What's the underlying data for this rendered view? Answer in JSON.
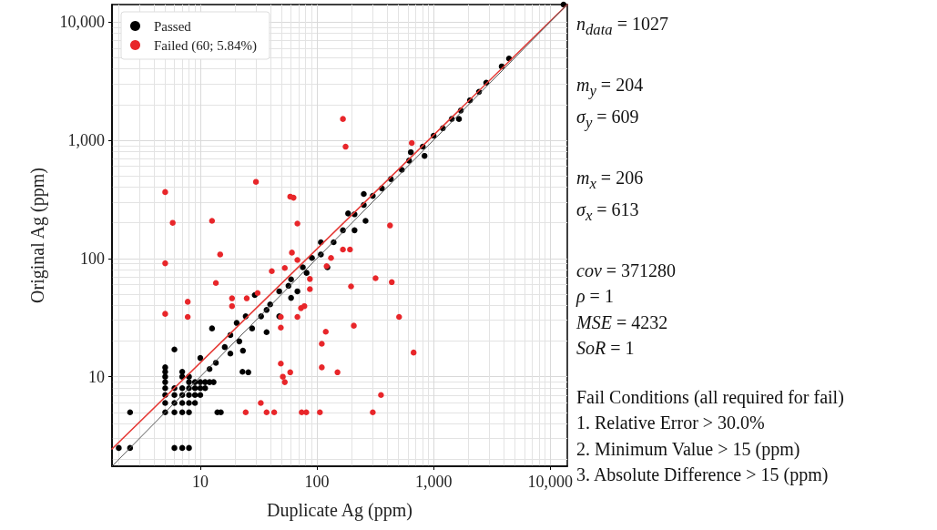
{
  "chart_data": {
    "type": "scatter",
    "xlabel": "Duplicate Ag (ppm)",
    "ylabel": "Original Ag (ppm)",
    "xlim": [
      1.75,
      14000
    ],
    "ylim": [
      1.75,
      14000
    ],
    "xticks": [
      10,
      100,
      {
        "value": 1000,
        "label": "1,000"
      },
      {
        "value": 10000,
        "label": "10,000"
      }
    ],
    "yticks": [
      10,
      100,
      {
        "value": 1000,
        "label": "1,000"
      },
      {
        "value": 10000,
        "label": "10,000"
      }
    ],
    "log": "xy",
    "grid": true,
    "legend": "top left",
    "marker": "circle",
    "series": [
      {
        "name": "Passed",
        "color": "#000000",
        "x": [
          2,
          2.5,
          2.5,
          6,
          7,
          8,
          5,
          5,
          5,
          5,
          5,
          5,
          5,
          5,
          6,
          6,
          6,
          6,
          6,
          7,
          7,
          7,
          7,
          7,
          7,
          8,
          8,
          8,
          8,
          8,
          8,
          9,
          9,
          9,
          9,
          10,
          10,
          10,
          11,
          11,
          12,
          13,
          14,
          15,
          23,
          12,
          13.6,
          18.1,
          21.6,
          27.8,
          33.2,
          39.7,
          47.5,
          60,
          75.7,
          90.6,
          108,
          12.6,
          10,
          20.5,
          24.5,
          25.8,
          37,
          47.5,
          60,
          81.5,
          68,
          108,
          139,
          123,
          57,
          29.3,
          37,
          18.1,
          16.2,
          23.2,
          167,
          185,
          210,
          210,
          252,
          252,
          261,
          301,
          360,
          430,
          534,
          616,
          638,
          807,
          836,
          1000,
          1200,
          1430,
          1650,
          1710,
          2050,
          2450,
          2826,
          3835,
          4430,
          13000
        ],
        "values": [
          2.5,
          2.5,
          5,
          2.5,
          2.5,
          2.5,
          5,
          6,
          7,
          8,
          9,
          10,
          11,
          12,
          5,
          6,
          7,
          8,
          17,
          5,
          6,
          7,
          8,
          10,
          11,
          5,
          6,
          7,
          8,
          9,
          10,
          6,
          7,
          8,
          9,
          7,
          8,
          9,
          8,
          9,
          9,
          9,
          5,
          5,
          11,
          11.6,
          13.1,
          15.7,
          19.9,
          25.6,
          32.4,
          40.9,
          52.7,
          66.6,
          84.2,
          101,
          137,
          25.6,
          14.4,
          28.5,
          32.4,
          10.9,
          23.8,
          32.4,
          46.4,
          75.5,
          52.7,
          108,
          137,
          84.2,
          58.7,
          49,
          36.7,
          22.5,
          17.8,
          16.6,
          173,
          240,
          236,
          173,
          351,
          283,
          208,
          338,
          391,
          469,
          561,
          671,
          790,
          881,
          736,
          1090,
          1260,
          1510,
          1510,
          1780,
          2170,
          2560,
          3065,
          4200,
          4900,
          14000
        ]
      },
      {
        "name": "Failed (60; 5.84%)",
        "color": "#e8262a",
        "x": [
          167,
          176,
          5,
          30,
          59,
          63,
          5.8,
          12.6,
          68,
          650,
          423,
          14.8,
          5,
          13.6,
          7.8,
          18.7,
          18.7,
          25,
          31,
          5,
          7.8,
          61,
          68,
          41,
          53,
          121,
          132,
          167,
          87,
          87,
          73,
          78,
          68,
          49,
          49,
          119,
          110,
          49,
          59,
          51,
          53,
          110,
          150,
          33,
          24.5,
          37,
          43,
          74,
          81,
          106,
          192,
          318,
          438,
          196,
          506,
          207,
          674,
          354,
          301
        ],
        "values": [
          1510,
          880,
          364,
          444,
          333,
          326,
          200,
          208,
          197,
          946,
          190,
          108,
          91,
          62,
          43,
          46,
          39.5,
          46,
          51,
          34,
          32,
          112,
          97,
          78,
          83,
          86,
          101,
          119,
          67,
          55,
          38,
          39.5,
          32,
          32,
          26,
          24,
          19,
          12.9,
          10.9,
          10,
          9,
          12,
          10.9,
          6,
          5,
          5,
          5,
          5,
          5,
          5,
          119,
          68,
          63,
          58,
          32,
          27,
          16,
          7,
          5
        ]
      },
      {
        "type": "line",
        "marker": "none",
        "color": "#e53935",
        "x": [
          1.75,
          14000
        ],
        "values": [
          2.45,
          14000
        ]
      },
      {
        "type": "line",
        "marker": "none",
        "color": "#555555",
        "x": [
          1.75,
          14000
        ],
        "values": [
          1.75,
          14000
        ]
      }
    ],
    "annotations": [
      "n$_{data}$ = 1027",
      "m$_{y}$ = 204",
      "σ$_{y}$ = 609",
      "m$_{x}$ = 206",
      "σ$_{x}$ = 613",
      "cov = 371280",
      "ρ = 1",
      "MSE = 4232",
      "SoR = 1",
      "Fail Conditions (all required for fail)",
      "1. Relative Error > 30.0%",
      "2. Minimum Value > 15 (ppm)",
      "3. Absolute Difference > 15 (ppm)"
    ]
  }
}
